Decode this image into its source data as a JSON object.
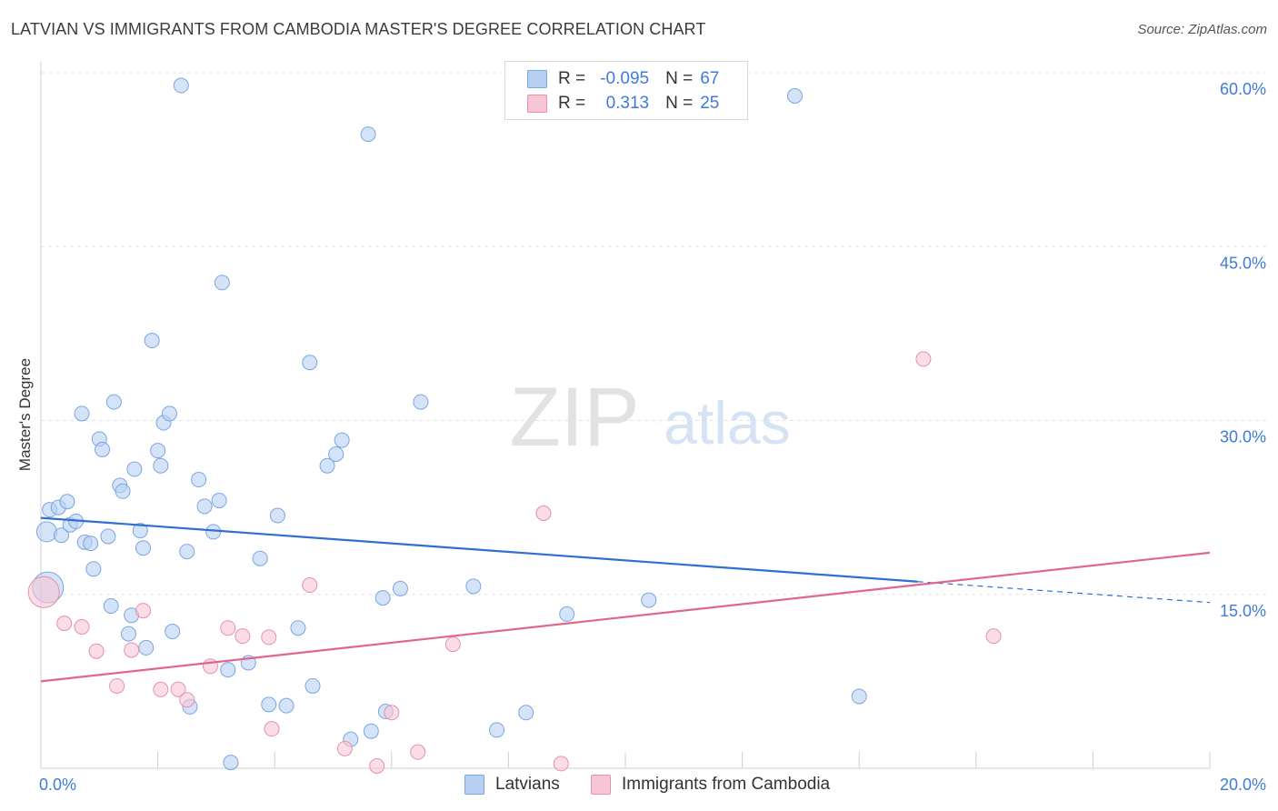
{
  "title": "LATVIAN VS IMMIGRANTS FROM CAMBODIA MASTER'S DEGREE CORRELATION CHART",
  "source": "Source: ZipAtlas.com",
  "watermark": {
    "zip": "ZIP",
    "atlas": "atlas"
  },
  "colors": {
    "latvian_fill": "#b7d1f3",
    "latvian_stroke": "#7ba6e0",
    "latvian_line": "#2f6fd1",
    "cambodia_fill": "#f7c6d5",
    "cambodia_stroke": "#e98fac",
    "cambodia_line": "#e0668e",
    "axis_label": "#3f7bd9",
    "grid": "#e3e3e3"
  },
  "legend": {
    "rows": [
      {
        "r_label": "R =",
        "r_value": "-0.095",
        "n_label": "N =",
        "n_value": "67"
      },
      {
        "r_label": "R =",
        "r_value": "0.313",
        "n_label": "N =",
        "n_value": "25"
      }
    ]
  },
  "bottom_legend": {
    "latvians": "Latvians",
    "cambodia": "Immigrants from Cambodia"
  },
  "chart_data": {
    "type": "scatter",
    "title": "LATVIAN VS IMMIGRANTS FROM CAMBODIA MASTER'S DEGREE CORRELATION CHART",
    "xlabel": "",
    "ylabel": "Master's Degree",
    "xlim": [
      0,
      20
    ],
    "ylim": [
      0,
      60
    ],
    "x_ticks": [
      0,
      20
    ],
    "x_tick_labels": [
      "0.0%",
      "20.0%"
    ],
    "y_ticks": [
      15,
      30,
      45,
      60
    ],
    "y_tick_labels": [
      "15.0%",
      "30.0%",
      "45.0%",
      "60.0%"
    ],
    "grid": true,
    "series": [
      {
        "name": "Latvians",
        "r": -0.095,
        "n": 67,
        "trend": {
          "x": [
            0,
            15
          ],
          "y": [
            21.6,
            16.1
          ],
          "dashed_extension": {
            "x": [
              15,
              20
            ],
            "y": [
              16.1,
              14.3
            ]
          }
        },
        "points": [
          [
            0.1,
            20.4,
            "L"
          ],
          [
            0.15,
            22.3
          ],
          [
            0.3,
            22.5
          ],
          [
            0.35,
            20.1
          ],
          [
            0.45,
            23.0
          ],
          [
            0.5,
            21.0
          ],
          [
            0.6,
            21.3
          ],
          [
            0.7,
            30.6
          ],
          [
            0.75,
            19.5
          ],
          [
            0.85,
            19.4
          ],
          [
            0.9,
            17.2
          ],
          [
            1.0,
            28.4
          ],
          [
            1.05,
            27.5
          ],
          [
            1.15,
            20.0
          ],
          [
            1.2,
            14.0
          ],
          [
            1.25,
            31.6
          ],
          [
            1.35,
            24.4
          ],
          [
            1.4,
            23.9
          ],
          [
            1.5,
            11.6
          ],
          [
            1.55,
            13.2
          ],
          [
            1.6,
            25.8
          ],
          [
            1.7,
            20.5
          ],
          [
            1.75,
            19.0
          ],
          [
            1.8,
            10.4
          ],
          [
            1.9,
            36.9
          ],
          [
            2.0,
            27.4
          ],
          [
            2.05,
            26.1
          ],
          [
            2.1,
            29.8
          ],
          [
            2.2,
            30.6
          ],
          [
            2.25,
            11.8
          ],
          [
            2.4,
            58.9
          ],
          [
            2.5,
            18.7
          ],
          [
            2.55,
            5.3
          ],
          [
            2.7,
            24.9
          ],
          [
            2.8,
            22.6
          ],
          [
            2.95,
            20.4
          ],
          [
            3.05,
            23.1
          ],
          [
            3.1,
            41.9
          ],
          [
            3.2,
            8.5
          ],
          [
            3.25,
            0.5
          ],
          [
            3.55,
            9.1
          ],
          [
            3.75,
            18.1
          ],
          [
            3.9,
            5.5
          ],
          [
            4.05,
            21.8
          ],
          [
            4.2,
            5.4
          ],
          [
            4.4,
            12.1
          ],
          [
            4.6,
            35.0
          ],
          [
            4.65,
            7.1
          ],
          [
            4.9,
            26.1
          ],
          [
            5.05,
            27.1
          ],
          [
            5.15,
            28.3
          ],
          [
            5.3,
            2.5
          ],
          [
            5.6,
            54.7
          ],
          [
            5.65,
            3.2
          ],
          [
            5.85,
            14.7
          ],
          [
            5.9,
            4.9
          ],
          [
            6.15,
            15.5
          ],
          [
            6.5,
            31.6
          ],
          [
            7.4,
            15.7
          ],
          [
            7.8,
            3.3
          ],
          [
            8.3,
            4.8
          ],
          [
            9.0,
            13.3
          ],
          [
            10.4,
            14.5
          ],
          [
            12.9,
            58.0
          ],
          [
            14.0,
            6.2
          ],
          [
            0.12,
            15.6,
            "XL"
          ]
        ]
      },
      {
        "name": "Immigrants from Cambodia",
        "r": 0.313,
        "n": 25,
        "trend": {
          "x": [
            0,
            20
          ],
          "y": [
            7.5,
            18.6
          ]
        },
        "points": [
          [
            0.05,
            15.2,
            "XL"
          ],
          [
            0.4,
            12.5
          ],
          [
            0.7,
            12.2
          ],
          [
            0.95,
            10.1
          ],
          [
            1.3,
            7.1
          ],
          [
            1.55,
            10.2
          ],
          [
            1.75,
            13.6
          ],
          [
            2.05,
            6.8
          ],
          [
            2.35,
            6.8
          ],
          [
            2.5,
            5.9
          ],
          [
            2.9,
            8.8
          ],
          [
            3.2,
            12.1
          ],
          [
            3.45,
            11.4
          ],
          [
            3.9,
            11.3
          ],
          [
            3.95,
            3.4
          ],
          [
            4.6,
            15.8
          ],
          [
            5.2,
            1.7
          ],
          [
            5.75,
            0.2
          ],
          [
            6.0,
            4.8
          ],
          [
            6.45,
            1.4
          ],
          [
            7.05,
            10.7
          ],
          [
            8.6,
            22.0
          ],
          [
            8.9,
            0.4
          ],
          [
            15.1,
            35.3
          ],
          [
            16.3,
            11.4
          ]
        ]
      }
    ]
  }
}
